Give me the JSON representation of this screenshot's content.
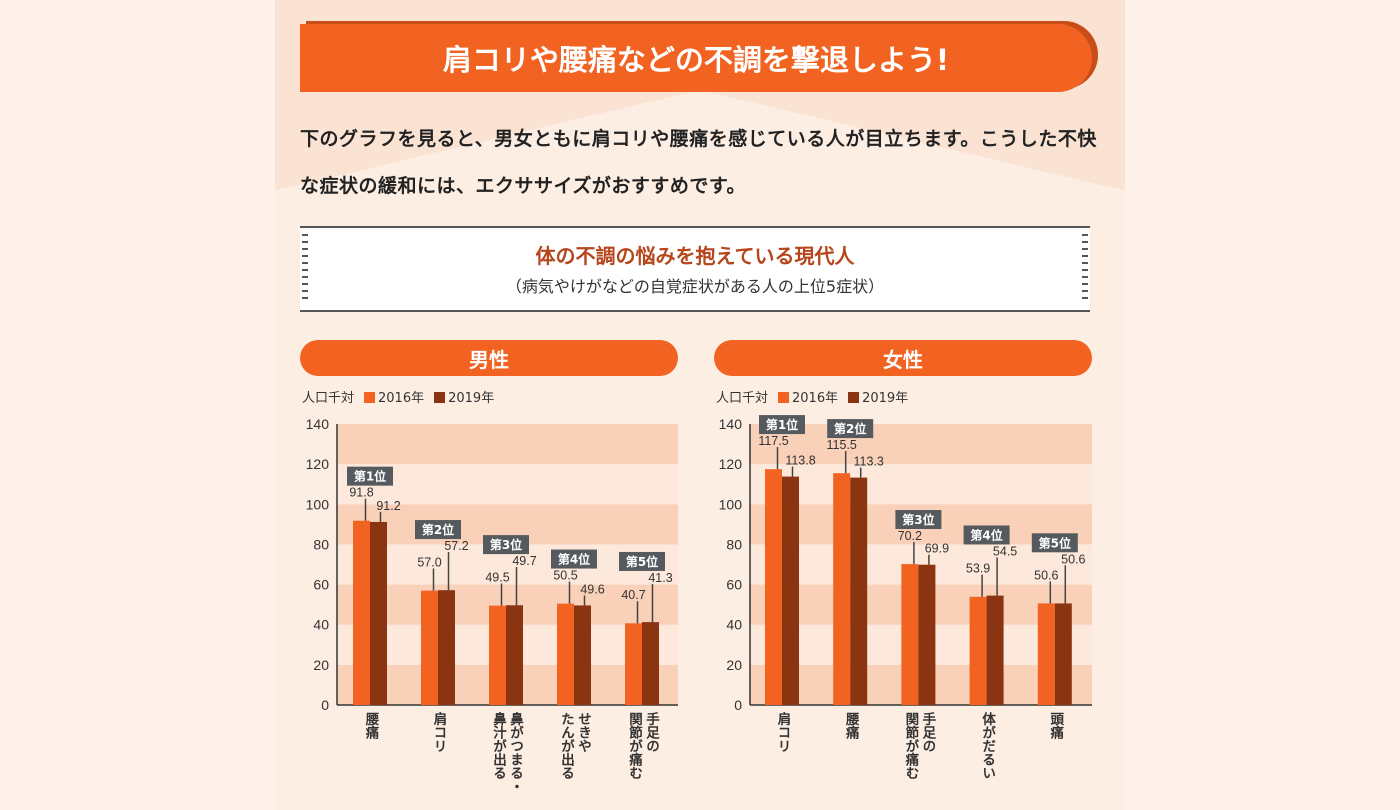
{
  "header": {
    "title": "肩コリや腰痛などの不調を撃退しよう!"
  },
  "intro": "下のグラフを見ると、男女ともに肩コリや腰痛を感じている人が目立ちます。こうした不快な症状の緩和には、エクササイズがおすすめです。",
  "figure": {
    "title": "体の不調の悩みを抱えている現代人",
    "subtitle": "（病気やけがなどの自覚症状がある人の上位5症状）"
  },
  "colors": {
    "s2016": "#f26322",
    "s2019": "#8a3412",
    "band_dark": "#f9d0b8",
    "band_light": "#fde9dc",
    "badge": "#555a5e"
  },
  "chart_data": [
    {
      "type": "bar",
      "title": "男性",
      "ylabel": "人口千対",
      "ylim": [
        0,
        140
      ],
      "yticks": [
        0,
        20,
        40,
        60,
        80,
        100,
        120,
        140
      ],
      "categories": [
        "腰痛",
        "肩コリ",
        "鼻がつまる・\n鼻汁が出る",
        "せきや\nたんが出る",
        "手足の\n関節が痛む"
      ],
      "ranks": [
        "第1位",
        "第2位",
        "第3位",
        "第4位",
        "第5位"
      ],
      "series": [
        {
          "name": "2016年",
          "values": [
            91.8,
            57.0,
            49.5,
            50.5,
            40.7
          ],
          "labels": [
            "91.8",
            "57.0",
            "49.5",
            "50.5",
            "40.7"
          ]
        },
        {
          "name": "2019年",
          "values": [
            91.2,
            57.2,
            49.7,
            49.6,
            41.3
          ],
          "labels": [
            "91.2",
            "57.2",
            "49.7",
            "49.6",
            "41.3"
          ]
        }
      ]
    },
    {
      "type": "bar",
      "title": "女性",
      "ylabel": "人口千対",
      "ylim": [
        0,
        140
      ],
      "yticks": [
        0,
        20,
        40,
        60,
        80,
        100,
        120,
        140
      ],
      "categories": [
        "肩コリ",
        "腰痛",
        "手足の\n関節が痛む",
        "体がだるい",
        "頭痛"
      ],
      "ranks": [
        "第1位",
        "第2位",
        "第3位",
        "第4位",
        "第5位"
      ],
      "series": [
        {
          "name": "2016年",
          "values": [
            117.5,
            115.5,
            70.2,
            53.9,
            50.6
          ],
          "labels": [
            "117.5",
            "115.5",
            "70.2",
            "53.9",
            "50.6"
          ]
        },
        {
          "name": "2019年",
          "values": [
            113.8,
            113.3,
            69.9,
            54.5,
            50.6
          ],
          "labels": [
            "113.8",
            "113.3",
            "69.9",
            "54.5",
            "50.6"
          ]
        }
      ]
    }
  ]
}
